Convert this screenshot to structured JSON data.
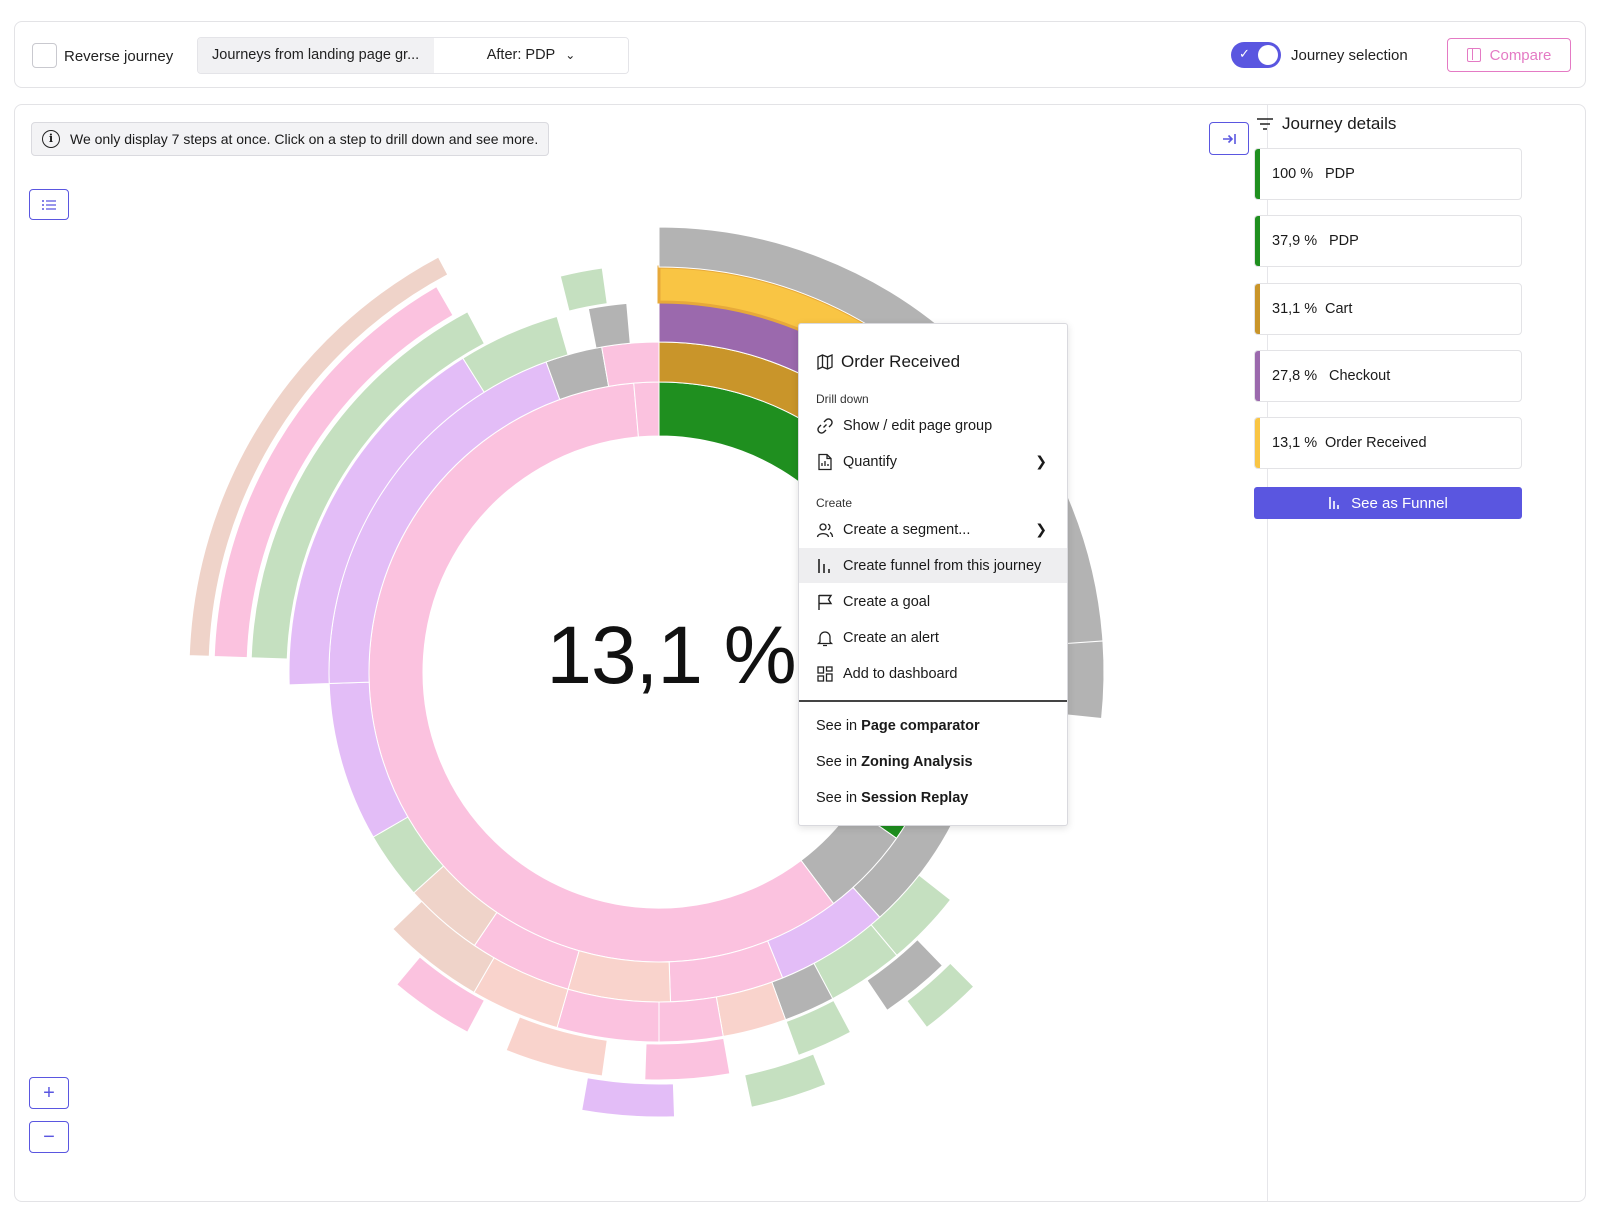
{
  "topbar": {
    "reverse_label": "Reverse journey",
    "segment_left": "Journeys from landing page gr...",
    "segment_right": "After: PDP",
    "journey_selection": "Journey selection",
    "compare": "Compare"
  },
  "main": {
    "info_text": "We only display 7 steps at once. Click on a step to drill down and see more.",
    "center_value": "13,1 %",
    "zoom_in": "+",
    "zoom_out": "−"
  },
  "context_menu": {
    "title": "Order Received",
    "drill_down_header": "Drill down",
    "show_edit": "Show / edit page group",
    "quantify": "Quantify",
    "create_header": "Create",
    "create_segment": "Create a segment...",
    "create_funnel": "Create funnel from this journey",
    "create_goal": "Create a goal",
    "create_alert": "Create an alert",
    "add_dashboard": "Add to dashboard",
    "see_in": "See in",
    "see_page_comparator": "Page comparator",
    "see_zoning": "Zoning Analysis",
    "see_replay": "Session Replay"
  },
  "sidebar": {
    "title": "Journey details",
    "steps": [
      {
        "pct": "100 %",
        "label": "PDP",
        "color": "#1f8f1f"
      },
      {
        "pct": "37,9 %",
        "label": "PDP",
        "color": "#1f8f1f"
      },
      {
        "pct": "31,1 %",
        "label": "Cart",
        "color": "#c9952a"
      },
      {
        "pct": "27,8 %",
        "label": "Checkout",
        "color": "#9b69ad"
      },
      {
        "pct": "13,1 %",
        "label": "Order Received",
        "color": "#f9c544"
      }
    ],
    "funnel_button": "See as Funnel"
  },
  "colors": {
    "accent": "#5a56e0",
    "compare": "#e47ac4",
    "green": "#1f8f1f",
    "gold": "#c9952a",
    "purple": "#9b69ad",
    "yellow": "#f9c544",
    "gray": "#b3b3b3",
    "pink": "#fbc2df",
    "lilac": "#e3bdf7",
    "sage": "#c5e0c0",
    "peach": "#f9d3cc",
    "blush": "#efd3c9"
  }
}
